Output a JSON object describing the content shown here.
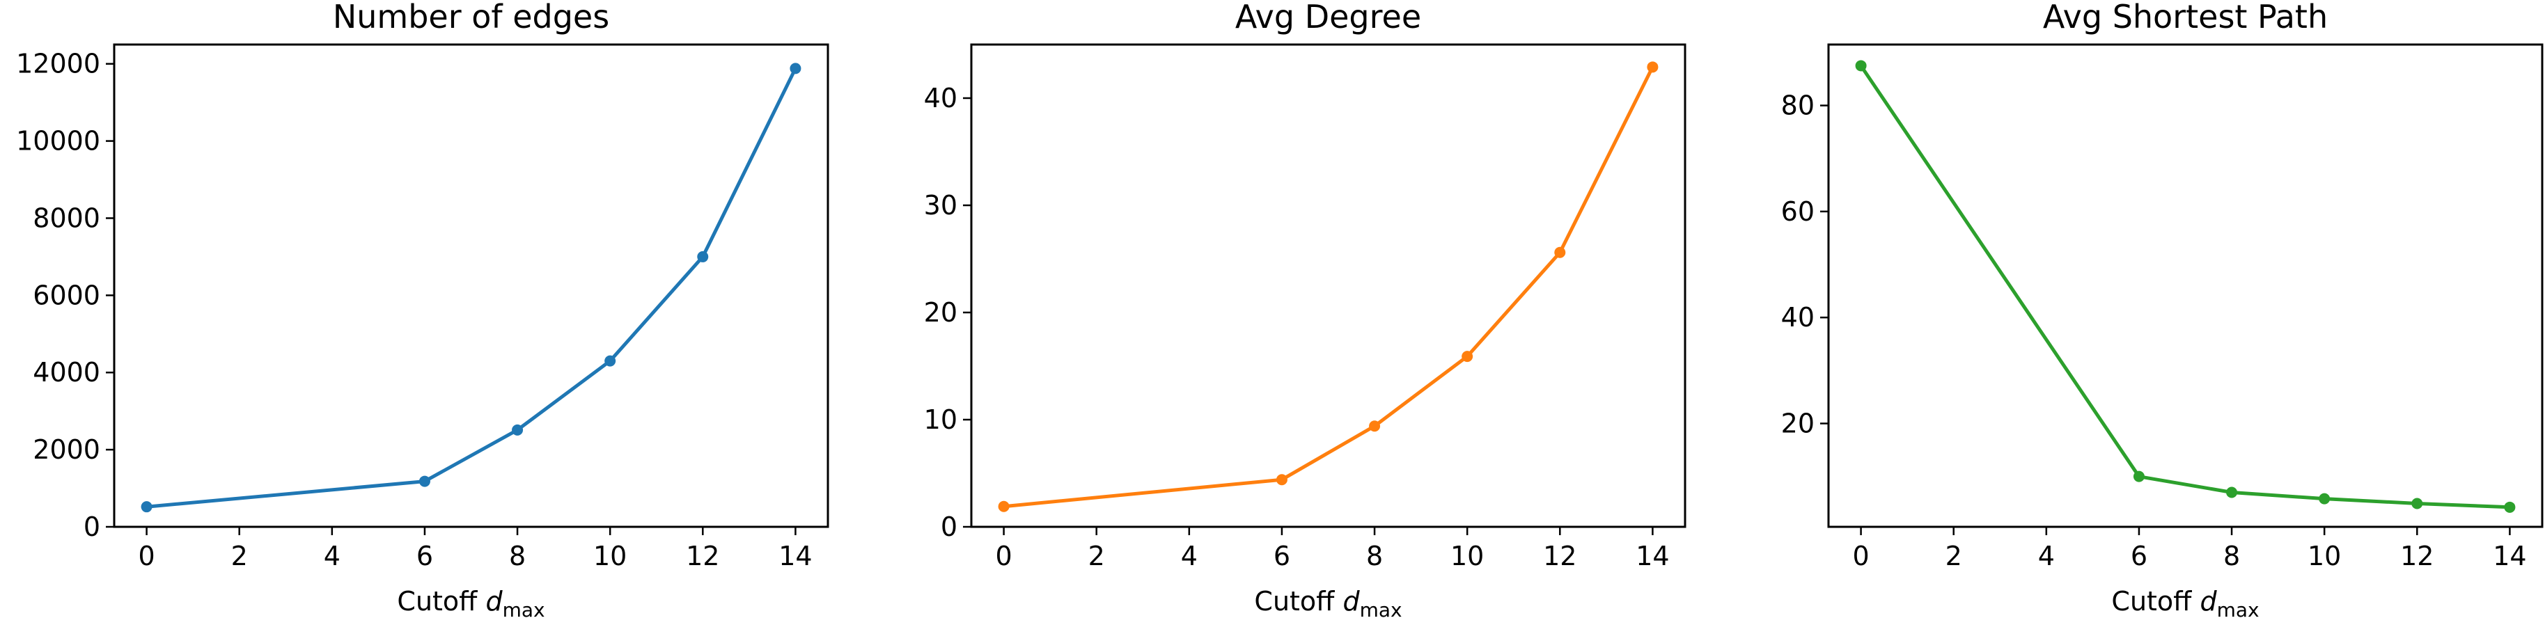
{
  "colors": {
    "blue": "#1f77b4",
    "orange": "#ff7f0e",
    "green": "#2ca02c",
    "axes": "#000000",
    "background": "#ffffff"
  },
  "chart_data": [
    {
      "type": "line",
      "title": "Number of edges",
      "xlabel": "Cutoff",
      "xlabel_math": {
        "base": "d",
        "subscript": "max"
      },
      "ylabel": "",
      "x": [
        0,
        6,
        8,
        10,
        12,
        14
      ],
      "series": [
        {
          "color": "#1f77b4",
          "values": [
            520,
            1180,
            2510,
            4300,
            7000,
            11880
          ]
        }
      ],
      "xlim": [
        -0.7,
        14.7
      ],
      "ylim": [
        0,
        12500
      ],
      "xticks": [
        0,
        2,
        4,
        6,
        8,
        10,
        12,
        14
      ],
      "yticks": [
        0,
        2000,
        4000,
        6000,
        8000,
        10000,
        12000
      ],
      "grid": false,
      "marker": "circle"
    },
    {
      "type": "line",
      "title": "Avg Degree",
      "xlabel": "Cutoff",
      "xlabel_math": {
        "base": "d",
        "subscript": "max"
      },
      "ylabel": "",
      "x": [
        0,
        6,
        8,
        10,
        12,
        14
      ],
      "series": [
        {
          "color": "#ff7f0e",
          "values": [
            1.9,
            4.4,
            9.4,
            15.9,
            25.6,
            42.9
          ]
        }
      ],
      "xlim": [
        -0.7,
        14.7
      ],
      "ylim": [
        0,
        45
      ],
      "xticks": [
        0,
        2,
        4,
        6,
        8,
        10,
        12,
        14
      ],
      "yticks": [
        0,
        10,
        20,
        30,
        40
      ],
      "grid": false,
      "marker": "circle"
    },
    {
      "type": "line",
      "title": "Avg Shortest Path",
      "xlabel": "Cutoff",
      "xlabel_math": {
        "base": "d",
        "subscript": "max"
      },
      "ylabel": "",
      "x": [
        0,
        6,
        8,
        10,
        12,
        14
      ],
      "series": [
        {
          "color": "#2ca02c",
          "values": [
            87.5,
            10.0,
            7.0,
            5.8,
            4.9,
            4.2
          ]
        }
      ],
      "xlim": [
        -0.7,
        14.7
      ],
      "ylim": [
        0.5,
        91.5
      ],
      "xticks": [
        0,
        2,
        4,
        6,
        8,
        10,
        12,
        14
      ],
      "yticks": [
        20,
        40,
        60,
        80
      ],
      "grid": false,
      "marker": "circle"
    }
  ]
}
